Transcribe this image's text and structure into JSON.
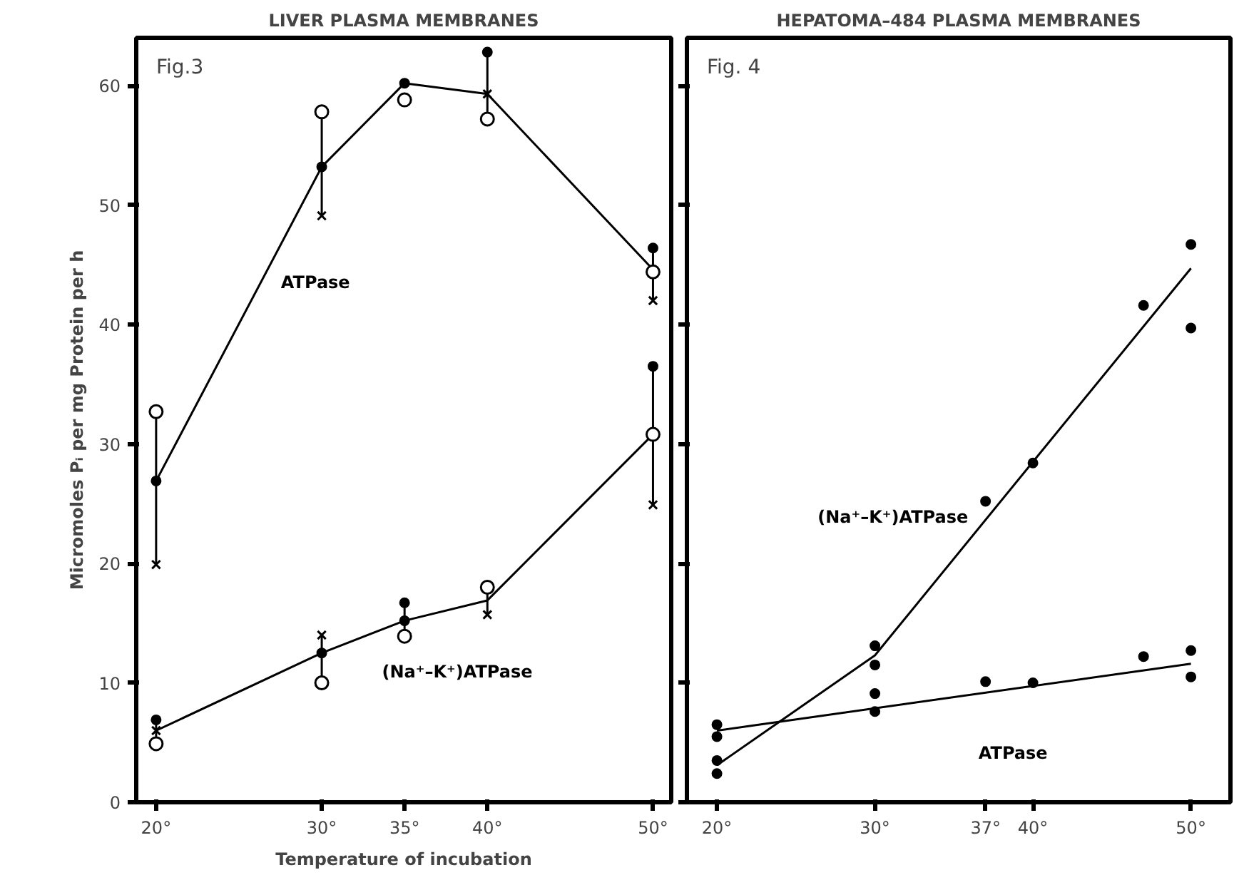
{
  "chart_data": [
    {
      "type": "line",
      "title": "LIVER PLASMA MEMBRANES",
      "annotations": [
        "Fig.3"
      ],
      "xlabel": "Temperature of incubation",
      "ylabel": "Micromoles Pᵢ per mg Protein per h",
      "xlim": [
        18.8,
        51.1
      ],
      "xticks": [
        {
          "value": 20,
          "label": "20°"
        },
        {
          "value": 30,
          "label": "30°"
        },
        {
          "value": 35,
          "label": "35°"
        },
        {
          "value": 40,
          "label": "40°"
        },
        {
          "value": 50,
          "label": "50°"
        }
      ],
      "ylim": [
        0,
        64
      ],
      "yticks": [
        0,
        10,
        20,
        30,
        40,
        50,
        60
      ],
      "series": [
        {
          "name": "ATPase",
          "color": "#000000",
          "x": [
            20,
            30,
            35,
            40,
            50
          ],
          "values": [
            26.9,
            53.2,
            60.2,
            59.3,
            44.6
          ],
          "errors": [
            [
              19.9,
              32.7
            ],
            [
              49.1,
              57.8
            ],
            null,
            [
              57.2,
              62.8
            ],
            [
              42.0,
              46.4
            ]
          ]
        },
        {
          "type": "scatter",
          "color": "#000000",
          "marker": "circle",
          "x": [
            20,
            30,
            35,
            40,
            50
          ],
          "values": [
            32.7,
            57.8,
            58.8,
            57.2,
            44.4
          ]
        },
        {
          "type": "scatter",
          "color": "#000000",
          "marker": "cross",
          "x": [
            20,
            30,
            40,
            50
          ],
          "values": [
            19.9,
            49.1,
            59.3,
            42.0
          ]
        },
        {
          "type": "scatter",
          "color": "#000000",
          "x": [
            20,
            30,
            35,
            40,
            50
          ],
          "values": [
            26.9,
            53.2,
            60.2,
            62.8,
            46.4
          ]
        },
        {
          "name": "(Na⁺–K⁺)ATPase",
          "color": "#000000",
          "x": [
            20,
            30,
            35,
            40,
            50
          ],
          "values": [
            6.0,
            12.5,
            15.2,
            16.9,
            30.8
          ],
          "errors": [
            [
              4.9,
              6.9
            ],
            [
              10.0,
              14.0
            ],
            [
              13.9,
              16.7
            ],
            [
              15.7,
              18.0
            ],
            [
              24.9,
              36.5
            ]
          ]
        },
        {
          "type": "scatter",
          "color": "#000000",
          "marker": "circle",
          "x": [
            20,
            30,
            35,
            40,
            50
          ],
          "values": [
            4.9,
            10.0,
            13.9,
            18.0,
            30.8
          ]
        },
        {
          "type": "scatter",
          "color": "#000000",
          "marker": "cross",
          "x": [
            20,
            30,
            40,
            50
          ],
          "values": [
            6.0,
            14.0,
            15.7,
            24.9
          ]
        },
        {
          "type": "scatter",
          "color": "#000000",
          "x": [
            20,
            30,
            35,
            35,
            50
          ],
          "values": [
            6.9,
            12.5,
            16.7,
            15.2,
            36.5
          ]
        }
      ]
    },
    {
      "type": "line",
      "title": "HEPATOMA–484 PLASMA MEMBRANES",
      "annotations": [
        "Fig. 4"
      ],
      "tick_labels": "x",
      "xlim": [
        18.1,
        52.5
      ],
      "xticks": [
        {
          "value": 20,
          "label": "20°"
        },
        {
          "value": 30,
          "label": "30°"
        },
        {
          "value": 37,
          "label": "37°"
        },
        {
          "value": 40,
          "label": "40°"
        },
        {
          "value": 50,
          "label": "50°"
        }
      ],
      "ylim": [
        0,
        64
      ],
      "yticks": [
        0,
        10,
        20,
        30,
        40,
        50,
        60
      ],
      "series": [
        {
          "name": "(Na⁺–K⁺)ATPase",
          "color": "#000000",
          "x": [
            20,
            30,
            50
          ],
          "values": [
            3.1,
            12.3,
            44.7
          ]
        },
        {
          "type": "scatter",
          "color": "#000000",
          "x": [
            20,
            20,
            30,
            30,
            37,
            40,
            47,
            50,
            50
          ],
          "values": [
            3.5,
            2.4,
            13.1,
            11.5,
            25.2,
            28.4,
            41.6,
            46.7,
            39.7
          ]
        },
        {
          "name": "ATPase",
          "color": "#000000",
          "x": [
            20,
            50
          ],
          "values": [
            6.0,
            11.6
          ]
        },
        {
          "type": "scatter",
          "color": "#000000",
          "x": [
            20,
            20,
            30,
            30,
            37,
            40,
            47,
            50,
            50
          ],
          "values": [
            6.5,
            5.5,
            9.1,
            7.6,
            10.1,
            10.0,
            12.2,
            12.7,
            10.5
          ]
        }
      ]
    }
  ]
}
